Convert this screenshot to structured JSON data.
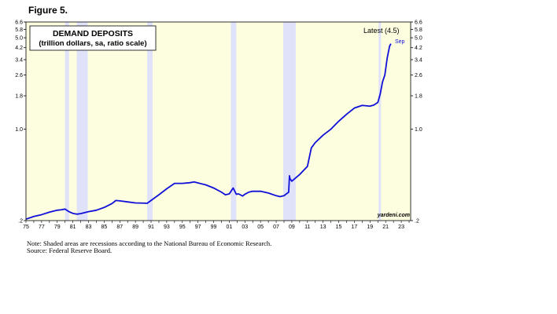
{
  "figure_label": "Figure 5.",
  "notes": {
    "note1": "Note: Shaded areas are recessions according to the National Bureau of Economic Research.",
    "note2": "Source: Federal Reserve Board."
  },
  "colors": {
    "background": "#fdfde0",
    "recession": "#e0e2fa",
    "line": "#1010d8",
    "latest_text": "#1010d8"
  },
  "chart_data": {
    "type": "line",
    "title": "DEMAND DEPOSITS",
    "subtitle": "(trillion dollars, sa, ratio scale)",
    "yscale": "log",
    "ylim": [
      0.2,
      6.6
    ],
    "xlim": [
      1975.0,
      2024.2
    ],
    "ytick_values": [
      0.2,
      1.0,
      1.8,
      2.6,
      3.4,
      4.2,
      5.0,
      5.8,
      6.6
    ],
    "ytick_labels": [
      ".2",
      "1.0",
      "1.8",
      "2.6",
      "3.4",
      "4.2",
      "5.0",
      "5.8",
      "6.6"
    ],
    "xtick_values": [
      1975,
      1977,
      1979,
      1981,
      1983,
      1985,
      1987,
      1989,
      1991,
      1993,
      1995,
      1997,
      1999,
      2001,
      2003,
      2005,
      2007,
      2009,
      2011,
      2013,
      2015,
      2017,
      2019,
      2021,
      2023
    ],
    "xtick_labels": [
      "75",
      "77",
      "79",
      "81",
      "83",
      "85",
      "87",
      "89",
      "91",
      "93",
      "95",
      "97",
      "99",
      "01",
      "03",
      "05",
      "07",
      "09",
      "11",
      "13",
      "15",
      "17",
      "19",
      "21",
      "23"
    ],
    "recessions": [
      [
        1980.0,
        1980.5
      ],
      [
        1981.5,
        1982.9
      ],
      [
        1990.5,
        1991.2
      ],
      [
        2001.2,
        2001.9
      ],
      [
        2007.9,
        2009.5
      ],
      [
        2020.1,
        2020.4
      ]
    ],
    "annotations": {
      "latest": "Latest (4.5)",
      "latest_date": "Sep",
      "watermark": "yardeni.com"
    },
    "grid": false,
    "legend": "none",
    "series": [
      {
        "x": [
          1975.0,
          1976.0,
          1977.0,
          1978.0,
          1979.0,
          1979.5,
          1980.0,
          1980.5,
          1981.0,
          1981.5,
          1982.0,
          1983.0,
          1984.0,
          1985.0,
          1986.0,
          1986.5,
          1987.0,
          1988.0,
          1989.0,
          1990.0,
          1990.5,
          1991.0,
          1992.0,
          1993.0,
          1994.0,
          1995.0,
          1996.0,
          1996.5,
          1997.0,
          1998.0,
          1999.0,
          2000.0,
          2000.5,
          2001.0,
          2001.5,
          2001.9,
          2002.2,
          2002.7,
          2003.0,
          2003.5,
          2004.0,
          2005.0,
          2006.0,
          2007.0,
          2007.5,
          2008.0,
          2008.6,
          2008.7,
          2008.75,
          2009.0,
          2010.0,
          2011.0,
          2011.5,
          2012.0,
          2013.0,
          2014.0,
          2015.0,
          2016.0,
          2017.0,
          2018.0,
          2019.0,
          2019.5,
          2020.0,
          2020.3,
          2020.6,
          2020.9,
          2021.2,
          2021.5,
          2021.67
        ],
        "values": [
          0.205,
          0.215,
          0.222,
          0.232,
          0.24,
          0.242,
          0.245,
          0.234,
          0.227,
          0.224,
          0.226,
          0.234,
          0.24,
          0.252,
          0.27,
          0.285,
          0.283,
          0.278,
          0.273,
          0.272,
          0.271,
          0.285,
          0.315,
          0.35,
          0.385,
          0.385,
          0.39,
          0.395,
          0.388,
          0.375,
          0.355,
          0.33,
          0.315,
          0.32,
          0.355,
          0.318,
          0.32,
          0.308,
          0.318,
          0.33,
          0.335,
          0.335,
          0.325,
          0.31,
          0.305,
          0.31,
          0.33,
          0.44,
          0.42,
          0.4,
          0.45,
          0.52,
          0.72,
          0.79,
          0.9,
          1.0,
          1.15,
          1.3,
          1.45,
          1.52,
          1.5,
          1.53,
          1.6,
          1.85,
          2.3,
          2.6,
          3.5,
          4.3,
          4.5
        ]
      }
    ]
  }
}
